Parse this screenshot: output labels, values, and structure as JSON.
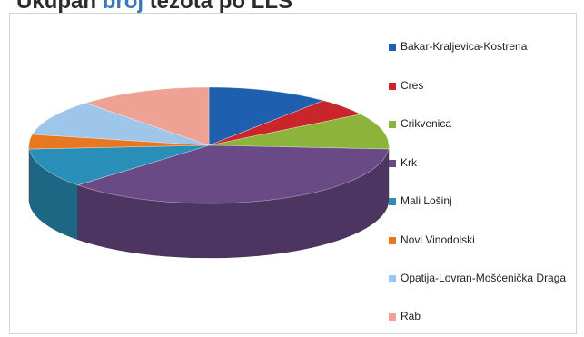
{
  "title": {
    "prefix": "Ukupan ",
    "accent": "broj ",
    "rest": "tezota po LLS"
  },
  "chart_data": {
    "type": "pie",
    "subtype": "3d-exploded-none",
    "legend_position": "right",
    "labels": [
      "Bakar-Kraljevica-Kostrena",
      "Cres",
      "Crikvenica",
      "Krk",
      "Mali Lošinj",
      "Novi Vinodolski",
      "Opatija-Lovran-Mošćenička Draga",
      "Rab"
    ],
    "values": [
      11,
      5,
      10,
      37,
      11,
      4,
      10,
      12
    ],
    "colors": [
      "#1f5fb0",
      "#c8262a",
      "#8cb43a",
      "#6a4a86",
      "#2a8fb8",
      "#e87722",
      "#9ec6ea",
      "#eea294"
    ],
    "start_angle_deg": -90,
    "direction": "clockwise"
  }
}
